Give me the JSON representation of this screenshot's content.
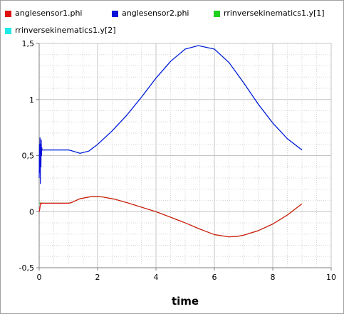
{
  "chart_data": {
    "type": "line",
    "xlabel": "time",
    "ylabel": "",
    "xlim": [
      0,
      10
    ],
    "ylim": [
      -0.5,
      1.5
    ],
    "grid": true,
    "legend_position": "top",
    "x_ticks": [
      "0",
      "2",
      "4",
      "6",
      "8",
      "10"
    ],
    "y_ticks": [
      "-0,5",
      "0",
      "0,5",
      "1",
      "1,5"
    ],
    "series": [
      {
        "name": "anglesensor1.phi",
        "color": "#e01010",
        "x": [
          0.0,
          0.02,
          0.04,
          0.06,
          0.08,
          0.1,
          0.5,
          1.0,
          1.1,
          1.4,
          1.8,
          2.0,
          2.2,
          2.6,
          3.0,
          3.5,
          4.0,
          4.5,
          5.0,
          5.5,
          6.0,
          6.5,
          6.8,
          7.0,
          7.5,
          8.0,
          8.5,
          9.0
        ],
        "y": [
          0.0,
          0.02,
          0.06,
          0.08,
          0.07,
          0.075,
          0.075,
          0.075,
          0.08,
          0.115,
          0.135,
          0.135,
          0.13,
          0.11,
          0.08,
          0.04,
          0.0,
          -0.05,
          -0.1,
          -0.155,
          -0.205,
          -0.225,
          -0.22,
          -0.21,
          -0.17,
          -0.11,
          -0.03,
          0.07
        ]
      },
      {
        "name": "anglesensor2.phi",
        "color": "#0a10d8",
        "x": [
          0.0,
          0.01,
          0.02,
          0.03,
          0.04,
          0.05,
          0.06,
          0.07,
          0.08,
          0.09,
          0.1,
          0.5,
          1.0,
          1.15,
          1.4,
          1.7,
          2.0,
          2.5,
          3.0,
          3.5,
          4.0,
          4.5,
          5.0,
          5.45,
          6.0,
          6.5,
          7.0,
          7.5,
          8.0,
          8.5,
          9.0
        ],
        "y": [
          0.3,
          0.6,
          0.35,
          0.66,
          0.25,
          0.6,
          0.4,
          0.64,
          0.5,
          0.57,
          0.55,
          0.55,
          0.55,
          0.54,
          0.52,
          0.54,
          0.6,
          0.72,
          0.86,
          1.02,
          1.19,
          1.34,
          1.45,
          1.48,
          1.45,
          1.33,
          1.15,
          0.96,
          0.79,
          0.65,
          0.55
        ]
      },
      {
        "name": "rrinversekinematics1.y[1]",
        "color": "#1ed01e",
        "x": [
          0.0,
          0.1,
          0.5,
          1.0,
          1.1,
          1.4,
          1.8,
          2.0,
          2.2,
          2.6,
          3.0,
          3.5,
          4.0,
          4.5,
          5.0,
          5.5,
          6.0,
          6.5,
          6.8,
          7.0,
          7.5,
          8.0,
          8.5,
          9.0
        ],
        "y": [
          0.075,
          0.075,
          0.075,
          0.075,
          0.08,
          0.115,
          0.135,
          0.135,
          0.13,
          0.11,
          0.08,
          0.04,
          0.0,
          -0.05,
          -0.1,
          -0.155,
          -0.205,
          -0.225,
          -0.22,
          -0.21,
          -0.17,
          -0.11,
          -0.03,
          0.07
        ]
      },
      {
        "name": "rrinversekinematics1.y[2]",
        "color": "#1ee8e8",
        "x": [
          0.0,
          0.1,
          0.5,
          1.0,
          1.15,
          1.4,
          1.7,
          2.0,
          2.5,
          3.0,
          3.5,
          4.0,
          4.5,
          5.0,
          5.45,
          6.0,
          6.5,
          7.0,
          7.5,
          8.0,
          8.5,
          9.0
        ],
        "y": [
          0.55,
          0.55,
          0.55,
          0.55,
          0.54,
          0.52,
          0.54,
          0.6,
          0.72,
          0.86,
          1.02,
          1.19,
          1.34,
          1.45,
          1.48,
          1.45,
          1.33,
          1.15,
          0.96,
          0.79,
          0.65,
          0.55
        ]
      }
    ]
  }
}
